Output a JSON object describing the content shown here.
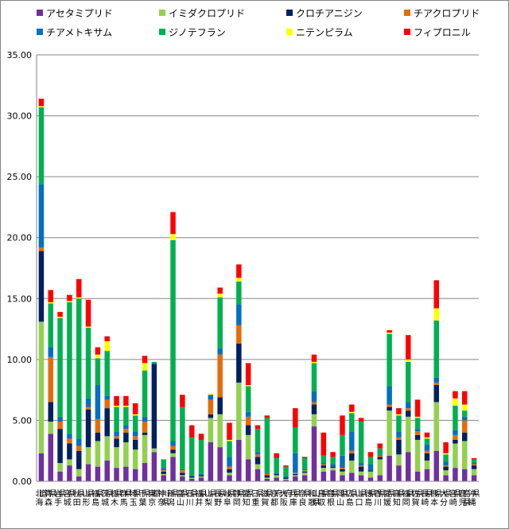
{
  "chart_data": {
    "type": "bar",
    "stacked": true,
    "ylim": [
      0,
      35
    ],
    "yticks": [
      "0.00",
      "5.00",
      "10.00",
      "15.00",
      "20.00",
      "25.00",
      "30.00",
      "35.00"
    ],
    "grid": true,
    "legend_position": "top",
    "categories": [
      "北海道",
      "青森県",
      "岩手県",
      "宮城県",
      "秋田県",
      "山形県",
      "福島県",
      "茨城県",
      "栃木県",
      "群馬県",
      "埼玉県",
      "千葉県",
      "東京都",
      "神奈川県",
      "新潟県",
      "富山県",
      "石川県",
      "福井県",
      "山梨県",
      "長野県",
      "岐阜県",
      "静岡県",
      "愛知県",
      "三重県",
      "滋賀県",
      "京都府",
      "大阪府",
      "兵庫県",
      "奈良県",
      "和歌山県",
      "鳥取県",
      "島根県",
      "岡山県",
      "広島県",
      "山口県",
      "徳島県",
      "香川県",
      "愛媛県",
      "高知県",
      "福岡県",
      "佐賀県",
      "長崎県",
      "熊本県",
      "大分県",
      "宮崎県",
      "鹿児島県",
      "沖縄県"
    ],
    "series": [
      {
        "name": "アセタミプリド",
        "color": "#7030A0",
        "values": [
          2.3,
          3.9,
          0.8,
          1.3,
          0.4,
          1.4,
          1.2,
          1.7,
          1.1,
          1.2,
          1.0,
          1.5,
          2.4,
          0.5,
          2.0,
          0.4,
          0.2,
          0.3,
          3.2,
          2.8,
          0.5,
          3.4,
          1.8,
          1.0,
          0.2,
          0.3,
          0.1,
          0.4,
          0.5,
          4.5,
          0.8,
          0.9,
          0.5,
          0.7,
          0.5,
          0.3,
          0.5,
          2.1,
          1.3,
          2.4,
          0.8,
          1.0,
          2.5,
          0.5,
          1.1,
          1.0,
          0.5
        ]
      },
      {
        "name": "イミダクロプリド",
        "color": "#92D050",
        "values": [
          10.8,
          1.0,
          0.7,
          0.5,
          0.6,
          1.4,
          2.1,
          2.0,
          1.7,
          2.0,
          1.6,
          2.3,
          0.3,
          0.1,
          0.3,
          0.1,
          0.1,
          0.1,
          2.0,
          2.7,
          0.2,
          4.7,
          2.0,
          0.4,
          0.1,
          0.2,
          0.1,
          0.1,
          0.2,
          1.0,
          0.3,
          0.2,
          0.3,
          1.0,
          0.3,
          0.5,
          1.3,
          3.7,
          0.9,
          2.9,
          2.6,
          0.7,
          4.0,
          0.4,
          2.0,
          2.3,
          0.5
        ]
      },
      {
        "name": "クロチアニジン",
        "color": "#002060",
        "values": [
          5.8,
          1.6,
          2.8,
          1.3,
          1.5,
          3.1,
          0.7,
          2.3,
          0.7,
          0.8,
          0.8,
          0.2,
          6.9,
          0.2,
          0.3,
          0.2,
          0.1,
          0.1,
          0.3,
          1.4,
          0.3,
          3.2,
          0.8,
          0.6,
          0.2,
          0.1,
          0.1,
          0.1,
          0.1,
          0.8,
          0.2,
          0.1,
          0.2,
          0.6,
          0.4,
          0.1,
          0.2,
          0.3,
          1.2,
          0.5,
          0.4,
          0.6,
          1.4,
          0.3,
          0.3,
          0.7,
          0.3
        ]
      },
      {
        "name": "チアクロプリド",
        "color": "#E46C0A",
        "values": [
          0.3,
          3.7,
          0.6,
          0.4,
          0.4,
          0.2,
          1.1,
          0.7,
          0.2,
          0.3,
          0.3,
          0.9,
          0.0,
          0.1,
          0.3,
          0.2,
          0.0,
          0.0,
          1.2,
          3.5,
          0.2,
          1.5,
          0.7,
          0.2,
          0.1,
          0.0,
          0.0,
          0.1,
          0.1,
          0.2,
          0.1,
          0.0,
          0.1,
          0.2,
          0.1,
          0.0,
          0.1,
          0.2,
          0.2,
          0.2,
          0.3,
          0.2,
          0.2,
          0.1,
          0.4,
          1.0,
          0.1
        ]
      },
      {
        "name": "チアメトキサム",
        "color": "#0070C0",
        "values": [
          5.2,
          0.8,
          0.4,
          0.4,
          0.6,
          0.7,
          2.8,
          0.3,
          0.4,
          0.3,
          0.4,
          0.4,
          0.1,
          0.2,
          0.4,
          0.1,
          0.1,
          0.1,
          0.4,
          0.5,
          0.8,
          1.7,
          0.4,
          0.2,
          0.1,
          0.1,
          0.1,
          1.6,
          0.1,
          0.9,
          0.1,
          0.2,
          1.0,
          1.6,
          0.2,
          0.5,
          0.1,
          1.5,
          0.5,
          0.5,
          0.2,
          0.5,
          0.4,
          0.3,
          0.4,
          0.3,
          0.1
        ]
      },
      {
        "name": "ジノテフラン",
        "color": "#00B050",
        "values": [
          6.3,
          3.6,
          8.1,
          10.8,
          11.5,
          5.8,
          2.2,
          3.7,
          2.0,
          1.5,
          1.3,
          3.8,
          0.1,
          0.7,
          16.5,
          5.1,
          3.1,
          2.8,
          0.0,
          4.2,
          1.3,
          1.9,
          2.1,
          1.9,
          4.5,
          1.2,
          0.8,
          2.1,
          0.9,
          2.3,
          0.6,
          0.6,
          1.7,
          1.5,
          3.4,
          0.6,
          0.5,
          4.3,
          1.3,
          3.3,
          0.9,
          0.5,
          4.7,
          0.6,
          2.0,
          0.5,
          0.3
        ]
      },
      {
        "name": "ニテンピラム",
        "color": "#FFFF00",
        "values": [
          0.1,
          0.1,
          0.1,
          0.1,
          0.1,
          0.1,
          0.3,
          0.8,
          0.1,
          0.1,
          0.1,
          0.6,
          0.0,
          0.0,
          0.5,
          0.0,
          0.0,
          0.0,
          0.1,
          0.3,
          0.1,
          0.3,
          0.1,
          0.0,
          0.0,
          0.0,
          0.0,
          0.0,
          0.0,
          0.1,
          0.0,
          0.0,
          0.0,
          0.1,
          0.0,
          0.0,
          0.0,
          0.1,
          0.1,
          0.2,
          0.1,
          0.1,
          1.0,
          0.1,
          0.6,
          0.5,
          0.0
        ]
      },
      {
        "name": "フィプロニル",
        "color": "#FF0000",
        "values": [
          0.6,
          1.0,
          0.4,
          0.5,
          1.5,
          2.2,
          0.6,
          0.4,
          0.8,
          0.8,
          0.9,
          0.6,
          0.0,
          0.0,
          1.8,
          1.0,
          1.0,
          0.5,
          0.0,
          0.5,
          1.4,
          1.1,
          1.8,
          0.3,
          0.2,
          0.4,
          0.1,
          1.6,
          0.1,
          0.6,
          1.9,
          0.4,
          1.6,
          0.6,
          0.3,
          0.4,
          0.4,
          0.2,
          0.5,
          2.0,
          1.4,
          0.4,
          2.3,
          0.9,
          0.6,
          1.1,
          0.1
        ]
      }
    ]
  }
}
